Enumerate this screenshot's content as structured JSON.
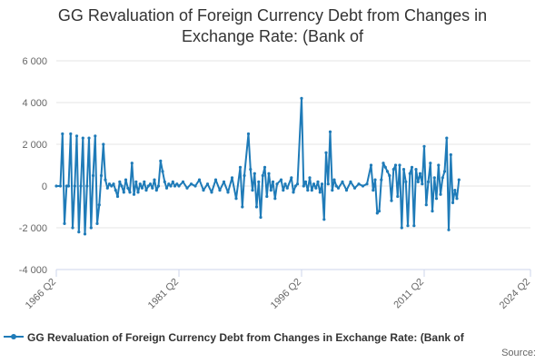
{
  "chart_data": {
    "type": "line",
    "title": "GG Revaluation of Foreign Currency Debt from Changes in\nExchange Rate: (Bank of",
    "x_tick_labels": [
      "1966 Q2",
      "1981 Q2",
      "1996 Q2",
      "2011 Q2",
      "2024 Q2"
    ],
    "x_range": [
      "1966 Q2",
      "2024 Q2"
    ],
    "ylim": [
      -4000,
      6000
    ],
    "y_ticks": [
      -4000,
      -2000,
      0,
      2000,
      4000,
      6000
    ],
    "y_tick_labels": [
      "-4 000",
      "-2 000",
      "0",
      "2 000",
      "4 000",
      "6 000"
    ],
    "grid": "horizontal",
    "legend_position": "bottom",
    "series": [
      {
        "name": "GG Revaluation of Foreign Currency Debt from Changes in Exchange Rate: (Bank of",
        "color": "#1f7bb8",
        "points": [
          [
            "1966 Q2",
            0
          ],
          [
            "1966 Q4",
            0
          ],
          [
            "1967 Q1",
            2500
          ],
          [
            "1967 Q2",
            -1800
          ],
          [
            "1967 Q3",
            0
          ],
          [
            "1967 Q4",
            0
          ],
          [
            "1968 Q1",
            2500
          ],
          [
            "1968 Q2",
            -2000
          ],
          [
            "1968 Q3",
            0
          ],
          [
            "1968 Q4",
            2400
          ],
          [
            "1969 Q1",
            -2200
          ],
          [
            "1969 Q2",
            0
          ],
          [
            "1969 Q3",
            2300
          ],
          [
            "1969 Q4",
            -2300
          ],
          [
            "1970 Q1",
            0
          ],
          [
            "1970 Q2",
            2300
          ],
          [
            "1970 Q3",
            -2000
          ],
          [
            "1970 Q4",
            500
          ],
          [
            "1971 Q1",
            2400
          ],
          [
            "1971 Q2",
            -1800
          ],
          [
            "1971 Q3",
            -900
          ],
          [
            "1971 Q4",
            500
          ],
          [
            "1972 Q1",
            2000
          ],
          [
            "1972 Q2",
            300
          ],
          [
            "1972 Q3",
            -100
          ],
          [
            "1972 Q4",
            100
          ],
          [
            "1973 Q1",
            0
          ],
          [
            "1973 Q2",
            100
          ],
          [
            "1973 Q3",
            -200
          ],
          [
            "1973 Q4",
            -500
          ],
          [
            "1974 Q1",
            200
          ],
          [
            "1974 Q2",
            0
          ],
          [
            "1974 Q3",
            -300
          ],
          [
            "1974 Q4",
            300
          ],
          [
            "1975 Q1",
            -100
          ],
          [
            "1975 Q2",
            -300
          ],
          [
            "1975 Q3",
            1100
          ],
          [
            "1975 Q4",
            -400
          ],
          [
            "1976 Q1",
            200
          ],
          [
            "1976 Q2",
            -300
          ],
          [
            "1976 Q3",
            100
          ],
          [
            "1976 Q4",
            -100
          ],
          [
            "1977 Q1",
            200
          ],
          [
            "1977 Q2",
            -200
          ],
          [
            "1977 Q3",
            0
          ],
          [
            "1977 Q4",
            100
          ],
          [
            "1978 Q1",
            -100
          ],
          [
            "1978 Q2",
            300
          ],
          [
            "1978 Q3",
            -200
          ],
          [
            "1978 Q4",
            0
          ],
          [
            "1979 Q1",
            1200
          ],
          [
            "1979 Q2",
            700
          ],
          [
            "1979 Q3",
            200
          ],
          [
            "1979 Q4",
            -100
          ],
          [
            "1980 Q1",
            100
          ],
          [
            "1980 Q2",
            0
          ],
          [
            "1980 Q3",
            200
          ],
          [
            "1980 Q4",
            0
          ],
          [
            "1981 Q1",
            100
          ],
          [
            "1981 Q2",
            0
          ],
          [
            "1981 Q4",
            200
          ],
          [
            "1982 Q2",
            -100
          ],
          [
            "1982 Q4",
            100
          ],
          [
            "1983 Q2",
            0
          ],
          [
            "1983 Q4",
            300
          ],
          [
            "1984 Q2",
            -200
          ],
          [
            "1984 Q4",
            100
          ],
          [
            "1985 Q2",
            -300
          ],
          [
            "1985 Q4",
            300
          ],
          [
            "1986 Q2",
            -200
          ],
          [
            "1986 Q4",
            200
          ],
          [
            "1987 Q2",
            -300
          ],
          [
            "1987 Q4",
            400
          ],
          [
            "1988 Q2",
            -600
          ],
          [
            "1988 Q4",
            900
          ],
          [
            "1989 Q1",
            -1000
          ],
          [
            "1989 Q2",
            500
          ],
          [
            "1989 Q4",
            2500
          ],
          [
            "1990 Q1",
            800
          ],
          [
            "1990 Q2",
            -200
          ],
          [
            "1990 Q3",
            600
          ],
          [
            "1990 Q4",
            -1000
          ],
          [
            "1991 Q1",
            200
          ],
          [
            "1991 Q2",
            -1500
          ],
          [
            "1991 Q3",
            500
          ],
          [
            "1991 Q4",
            900
          ],
          [
            "1992 Q1",
            -500
          ],
          [
            "1992 Q2",
            600
          ],
          [
            "1992 Q3",
            -200
          ],
          [
            "1992 Q4",
            200
          ],
          [
            "1993 Q1",
            -600
          ],
          [
            "1993 Q2",
            100
          ],
          [
            "1993 Q4",
            300
          ],
          [
            "1994 Q1",
            -200
          ],
          [
            "1994 Q2",
            100
          ],
          [
            "1994 Q3",
            -100
          ],
          [
            "1995 Q1",
            400
          ],
          [
            "1995 Q2",
            -300
          ],
          [
            "1995 Q3",
            0
          ],
          [
            "1995 Q4",
            100
          ],
          [
            "1996 Q2",
            4200
          ],
          [
            "1996 Q3",
            0
          ],
          [
            "1996 Q4",
            200
          ],
          [
            "1997 Q1",
            -200
          ],
          [
            "1997 Q2",
            400
          ],
          [
            "1997 Q3",
            -200
          ],
          [
            "1997 Q4",
            100
          ],
          [
            "1998 Q1",
            -100
          ],
          [
            "1998 Q2",
            200
          ],
          [
            "1998 Q3",
            -300
          ],
          [
            "1998 Q4",
            100
          ],
          [
            "1999 Q1",
            -1600
          ],
          [
            "1999 Q2",
            1600
          ],
          [
            "1999 Q3",
            100
          ],
          [
            "1999 Q4",
            2600
          ],
          [
            "2000 Q1",
            -200
          ],
          [
            "2000 Q2",
            300
          ],
          [
            "2000 Q3",
            0
          ],
          [
            "2000 Q4",
            -100
          ],
          [
            "2001 Q2",
            200
          ],
          [
            "2001 Q4",
            -200
          ],
          [
            "2002 Q2",
            200
          ],
          [
            "2002 Q4",
            -100
          ],
          [
            "2003 Q2",
            100
          ],
          [
            "2003 Q4",
            0
          ],
          [
            "2004 Q2",
            100
          ],
          [
            "2004 Q4",
            1000
          ],
          [
            "2005 Q1",
            -200
          ],
          [
            "2005 Q2",
            300
          ],
          [
            "2005 Q3",
            -1300
          ],
          [
            "2005 Q4",
            -1200
          ],
          [
            "2006 Q1",
            300
          ],
          [
            "2006 Q2",
            1100
          ],
          [
            "2006 Q3",
            900
          ],
          [
            "2006 Q4",
            700
          ],
          [
            "2007 Q1",
            500
          ],
          [
            "2007 Q2",
            -700
          ],
          [
            "2007 Q3",
            800
          ],
          [
            "2007 Q4",
            1000
          ],
          [
            "2008 Q1",
            -500
          ],
          [
            "2008 Q2",
            1000
          ],
          [
            "2008 Q3",
            -2000
          ],
          [
            "2008 Q4",
            800
          ],
          [
            "2009 Q1",
            200
          ],
          [
            "2009 Q2",
            -1900
          ],
          [
            "2009 Q3",
            600
          ],
          [
            "2009 Q4",
            900
          ],
          [
            "2010 Q1",
            -1900
          ],
          [
            "2010 Q2",
            800
          ],
          [
            "2010 Q3",
            200
          ],
          [
            "2010 Q4",
            600
          ],
          [
            "2011 Q1",
            100
          ],
          [
            "2011 Q2",
            1900
          ],
          [
            "2011 Q3",
            -900
          ],
          [
            "2011 Q4",
            200
          ],
          [
            "2012 Q1",
            1100
          ],
          [
            "2012 Q2",
            -1200
          ],
          [
            "2012 Q3",
            400
          ],
          [
            "2012 Q4",
            -600
          ],
          [
            "2013 Q1",
            1000
          ],
          [
            "2013 Q2",
            -400
          ],
          [
            "2013 Q3",
            400
          ],
          [
            "2013 Q4",
            700
          ],
          [
            "2014 Q1",
            2300
          ],
          [
            "2014 Q2",
            -2100
          ],
          [
            "2014 Q3",
            1500
          ],
          [
            "2014 Q4",
            -800
          ],
          [
            "2015 Q1",
            -200
          ],
          [
            "2015 Q2",
            -600
          ],
          [
            "2015 Q3",
            300
          ]
        ]
      }
    ]
  },
  "legend": {
    "label": "GG Revaluation of Foreign Currency Debt from Changes in Exchange Rate: (Bank of"
  },
  "source": {
    "label": "Source:"
  }
}
